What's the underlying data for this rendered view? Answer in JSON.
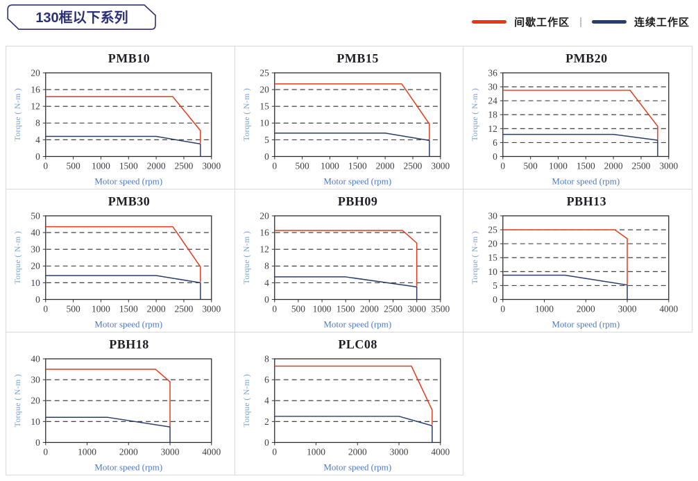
{
  "header": {
    "series_title": "130框以下系列",
    "legend": {
      "intermittent_label": "间歇工作区",
      "continuous_label": "连续工作区",
      "separator": "|"
    }
  },
  "colors": {
    "intermittent": "#e13a1b",
    "continuous": "#2a3c6e",
    "badge_navy": "#2a2f76",
    "cell_border": "#d9d9d9",
    "axis": "#2b2b2b",
    "tick_text": "#3c3c46",
    "title_text": "#1f1f28",
    "xlabel_blue": "#4f79c4",
    "ylabel_blue": "#7ba3d8"
  },
  "chart_data": [
    {
      "type": "line",
      "title": "PMB10",
      "xlabel": "Motor speed (rpm)",
      "ylabel": "Torque ( N-m )",
      "xlim": [
        0,
        3000
      ],
      "ylim": [
        0,
        20
      ],
      "xticks": [
        0,
        500,
        1000,
        1500,
        2000,
        2500,
        3000
      ],
      "yticks": [
        0,
        4,
        8,
        12,
        16,
        20
      ],
      "grid": "dashed-horizontal",
      "legend_position": "none",
      "series": [
        {
          "name": "间歇工作区",
          "color": "#e13a1b",
          "points": [
            [
              0,
              14.3
            ],
            [
              2300,
              14.3
            ],
            [
              2800,
              6.2
            ],
            [
              2800,
              3.2
            ]
          ]
        },
        {
          "name": "连续工作区",
          "color": "#2a3c6e",
          "points": [
            [
              0,
              4.8
            ],
            [
              2000,
              4.8
            ],
            [
              2800,
              3.0
            ],
            [
              2800,
              0
            ]
          ]
        }
      ]
    },
    {
      "type": "line",
      "title": "PMB15",
      "xlabel": "Motor speed (rpm)",
      "ylabel": "Torque ( N-m )",
      "xlim": [
        0,
        3000
      ],
      "ylim": [
        0,
        25
      ],
      "xticks": [
        0,
        500,
        1000,
        1500,
        2000,
        2500,
        3000
      ],
      "yticks": [
        0,
        5,
        10,
        15,
        20,
        25
      ],
      "grid": "dashed-horizontal",
      "legend_position": "none",
      "series": [
        {
          "name": "间歇工作区",
          "color": "#e13a1b",
          "points": [
            [
              0,
              21.7
            ],
            [
              2300,
              21.7
            ],
            [
              2800,
              9.7
            ],
            [
              2800,
              5.0
            ]
          ]
        },
        {
          "name": "连续工作区",
          "color": "#2a3c6e",
          "points": [
            [
              0,
              7.0
            ],
            [
              2000,
              7.0
            ],
            [
              2800,
              4.8
            ],
            [
              2800,
              0
            ]
          ]
        }
      ]
    },
    {
      "type": "line",
      "title": "PMB20",
      "xlabel": "Motor speed (rpm)",
      "ylabel": "Torque ( N-m )",
      "xlim": [
        0,
        3000
      ],
      "ylim": [
        0,
        36
      ],
      "xticks": [
        0,
        500,
        1000,
        1500,
        2000,
        2500,
        3000
      ],
      "yticks": [
        0,
        6,
        12,
        18,
        24,
        30,
        36
      ],
      "grid": "dashed-horizontal",
      "legend_position": "none",
      "series": [
        {
          "name": "间歇工作区",
          "color": "#e13a1b",
          "points": [
            [
              0,
              28.5
            ],
            [
              2300,
              28.5
            ],
            [
              2800,
              13.0
            ],
            [
              2800,
              7.2
            ]
          ]
        },
        {
          "name": "连续工作区",
          "color": "#2a3c6e",
          "points": [
            [
              0,
              9.5
            ],
            [
              2000,
              9.5
            ],
            [
              2800,
              7.0
            ],
            [
              2800,
              0
            ]
          ]
        }
      ]
    },
    {
      "type": "line",
      "title": "PMB30",
      "xlabel": "Motor speed (rpm)",
      "ylabel": "Torque ( N-m )",
      "xlim": [
        0,
        3000
      ],
      "ylim": [
        0,
        50
      ],
      "xticks": [
        0,
        500,
        1000,
        1500,
        2000,
        2500,
        3000
      ],
      "yticks": [
        0,
        10,
        20,
        30,
        40,
        50
      ],
      "grid": "dashed-horizontal",
      "legend_position": "none",
      "series": [
        {
          "name": "间歇工作区",
          "color": "#e13a1b",
          "points": [
            [
              0,
              43.5
            ],
            [
              2300,
              43.5
            ],
            [
              2800,
              19.5
            ],
            [
              2800,
              10.5
            ]
          ]
        },
        {
          "name": "连续工作区",
          "color": "#2a3c6e",
          "points": [
            [
              0,
              14.3
            ],
            [
              2000,
              14.3
            ],
            [
              2800,
              10.0
            ],
            [
              2800,
              0
            ]
          ]
        }
      ]
    },
    {
      "type": "line",
      "title": "PBH09",
      "xlabel": "Motor speed (rpm)",
      "ylabel": "Torque ( N-m )",
      "xlim": [
        0,
        3500
      ],
      "ylim": [
        0,
        20
      ],
      "xticks": [
        0,
        500,
        1000,
        1500,
        2000,
        2500,
        3000,
        3500
      ],
      "yticks": [
        0,
        4,
        8,
        12,
        16,
        20
      ],
      "grid": "dashed-horizontal",
      "legend_position": "none",
      "series": [
        {
          "name": "间歇工作区",
          "color": "#e13a1b",
          "points": [
            [
              0,
              16.5
            ],
            [
              2700,
              16.5
            ],
            [
              3000,
              13.5
            ],
            [
              3000,
              3.2
            ]
          ]
        },
        {
          "name": "连续工作区",
          "color": "#2a3c6e",
          "points": [
            [
              0,
              5.4
            ],
            [
              1500,
              5.4
            ],
            [
              3000,
              3.0
            ],
            [
              3000,
              0
            ]
          ]
        }
      ]
    },
    {
      "type": "line",
      "title": "PBH13",
      "xlabel": "Motor speed (rpm)",
      "ylabel": "Torque ( N-m )",
      "xlim": [
        0,
        4000
      ],
      "ylim": [
        0,
        30
      ],
      "xticks": [
        0,
        1000,
        2000,
        3000,
        4000
      ],
      "yticks": [
        0,
        5,
        10,
        15,
        20,
        25,
        30
      ],
      "grid": "dashed-horizontal",
      "legend_position": "none",
      "series": [
        {
          "name": "间歇工作区",
          "color": "#e13a1b",
          "points": [
            [
              0,
              25.0
            ],
            [
              2700,
              25.0
            ],
            [
              3000,
              21.8
            ],
            [
              3000,
              5.4
            ]
          ]
        },
        {
          "name": "连续工作区",
          "color": "#2a3c6e",
          "points": [
            [
              0,
              8.7
            ],
            [
              1500,
              8.7
            ],
            [
              3000,
              5.2
            ],
            [
              3000,
              0
            ]
          ]
        }
      ]
    },
    {
      "type": "line",
      "title": "PBH18",
      "xlabel": "Motor speed (rpm)",
      "ylabel": "Torque ( N-m )",
      "xlim": [
        0,
        4000
      ],
      "ylim": [
        0,
        40
      ],
      "xticks": [
        0,
        1000,
        2000,
        3000,
        4000
      ],
      "yticks": [
        0,
        10,
        20,
        30,
        40
      ],
      "grid": "dashed-horizontal",
      "legend_position": "none",
      "series": [
        {
          "name": "间歇工作区",
          "color": "#e13a1b",
          "points": [
            [
              0,
              35.0
            ],
            [
              2650,
              35.0
            ],
            [
              3000,
              29.0
            ],
            [
              3000,
              7.6
            ]
          ]
        },
        {
          "name": "连续工作区",
          "color": "#2a3c6e",
          "points": [
            [
              0,
              12.0
            ],
            [
              1500,
              12.0
            ],
            [
              3000,
              7.4
            ],
            [
              3000,
              0
            ]
          ]
        }
      ]
    },
    {
      "type": "line",
      "title": "PLC08",
      "xlabel": "Motor speed (rpm)",
      "ylabel": "Torque ( N-m )",
      "xlim": [
        0,
        4000
      ],
      "ylim": [
        0,
        8
      ],
      "xticks": [
        0,
        1000,
        2000,
        3000,
        4000
      ],
      "yticks": [
        0,
        2,
        4,
        6,
        8
      ],
      "grid": "dashed-horizontal",
      "legend_position": "none",
      "series": [
        {
          "name": "间歇工作区",
          "color": "#e13a1b",
          "points": [
            [
              0,
              7.3
            ],
            [
              3300,
              7.3
            ],
            [
              3800,
              3.1
            ],
            [
              3800,
              1.7
            ]
          ]
        },
        {
          "name": "连续工作区",
          "color": "#2a3c6e",
          "points": [
            [
              0,
              2.5
            ],
            [
              3000,
              2.5
            ],
            [
              3800,
              1.6
            ],
            [
              3800,
              0
            ]
          ]
        }
      ]
    }
  ]
}
